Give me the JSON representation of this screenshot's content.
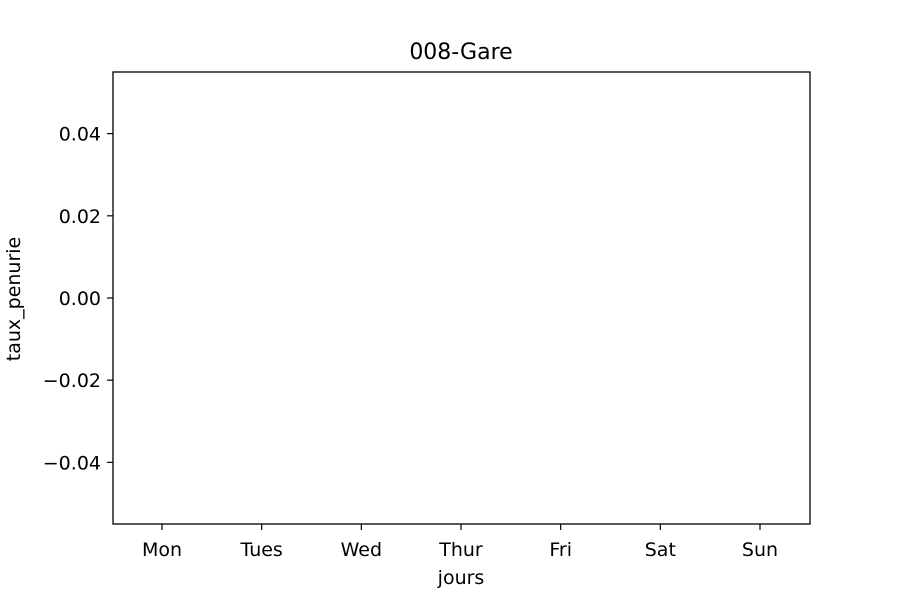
{
  "chart_data": {
    "type": "line",
    "title": "008-Gare",
    "xlabel": "jours",
    "ylabel": "taux_penurie",
    "categories": [
      "Mon",
      "Tues",
      "Wed",
      "Thur",
      "Fri",
      "Sat",
      "Sun"
    ],
    "series": [],
    "ylim": [
      -0.055,
      0.055
    ],
    "yticks": [
      0.04,
      0.02,
      0.0,
      -0.02,
      -0.04
    ],
    "ytick_labels": [
      "0.04",
      "0.02",
      "0.00",
      "−0.02",
      "−0.04"
    ],
    "grid": false,
    "legend": "none"
  }
}
